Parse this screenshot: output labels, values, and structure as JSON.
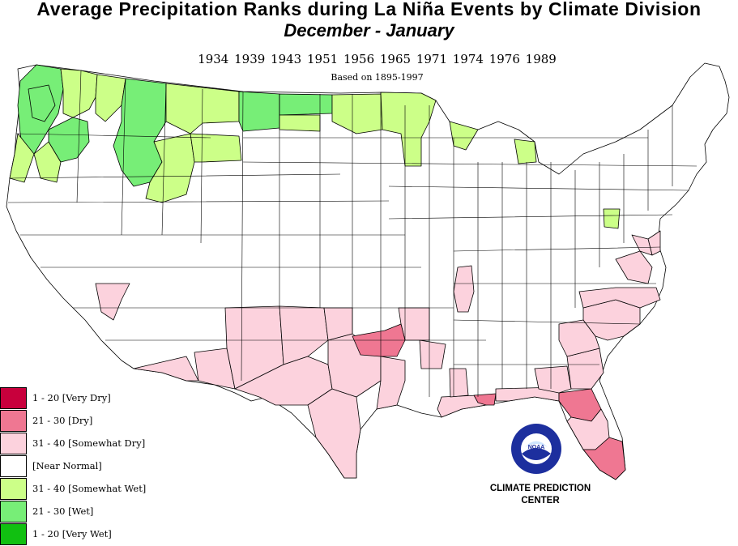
{
  "header": {
    "title": "Average Precipitation Ranks during La  Niña Events by Climate Division",
    "subtitle": "December  -  January",
    "years_line": "1934 1939 1943 1951 1956 1965 1971 1974 1976 1989",
    "based_on": "Based on 1895-1997"
  },
  "legend": {
    "items": [
      {
        "label": "1 - 20 [Very Dry]",
        "color": "#c8003c"
      },
      {
        "label": "21 - 30 [Dry]",
        "color": "#ef7792"
      },
      {
        "label": "31 - 40 [Somewhat Dry]",
        "color": "#fcd2dd"
      },
      {
        "label": " [Near Normal]",
        "color": "#ffffff"
      },
      {
        "label": "31 - 40 [Somewhat Wet]",
        "color": "#ccff88"
      },
      {
        "label": "21 - 30 [Wet]",
        "color": "#77ee77"
      },
      {
        "label": "1 - 20 [Very Wet]",
        "color": "#11c011"
      }
    ]
  },
  "map": {
    "colors": {
      "very_dry": "#c8003c",
      "dry": "#ef7792",
      "somewhat_dry": "#fcd2dd",
      "near_normal": "#ffffff",
      "somewhat_wet": "#ccff88",
      "wet": "#77ee77",
      "very_wet": "#11c011",
      "border": "#000000"
    }
  },
  "logo": {
    "text": "NOAA",
    "ring_text": "NATIONAL OCEANIC AND ATMOSPHERIC ADMINISTRATION · U.S. DEPARTMENT OF COMMERCE",
    "colors": {
      "ring": "#1d2f9e",
      "inner": "#ffffff",
      "bird": "#1d2f9e"
    }
  },
  "credit": {
    "line1": "CLIMATE PREDICTION",
    "line2": "CENTER"
  }
}
